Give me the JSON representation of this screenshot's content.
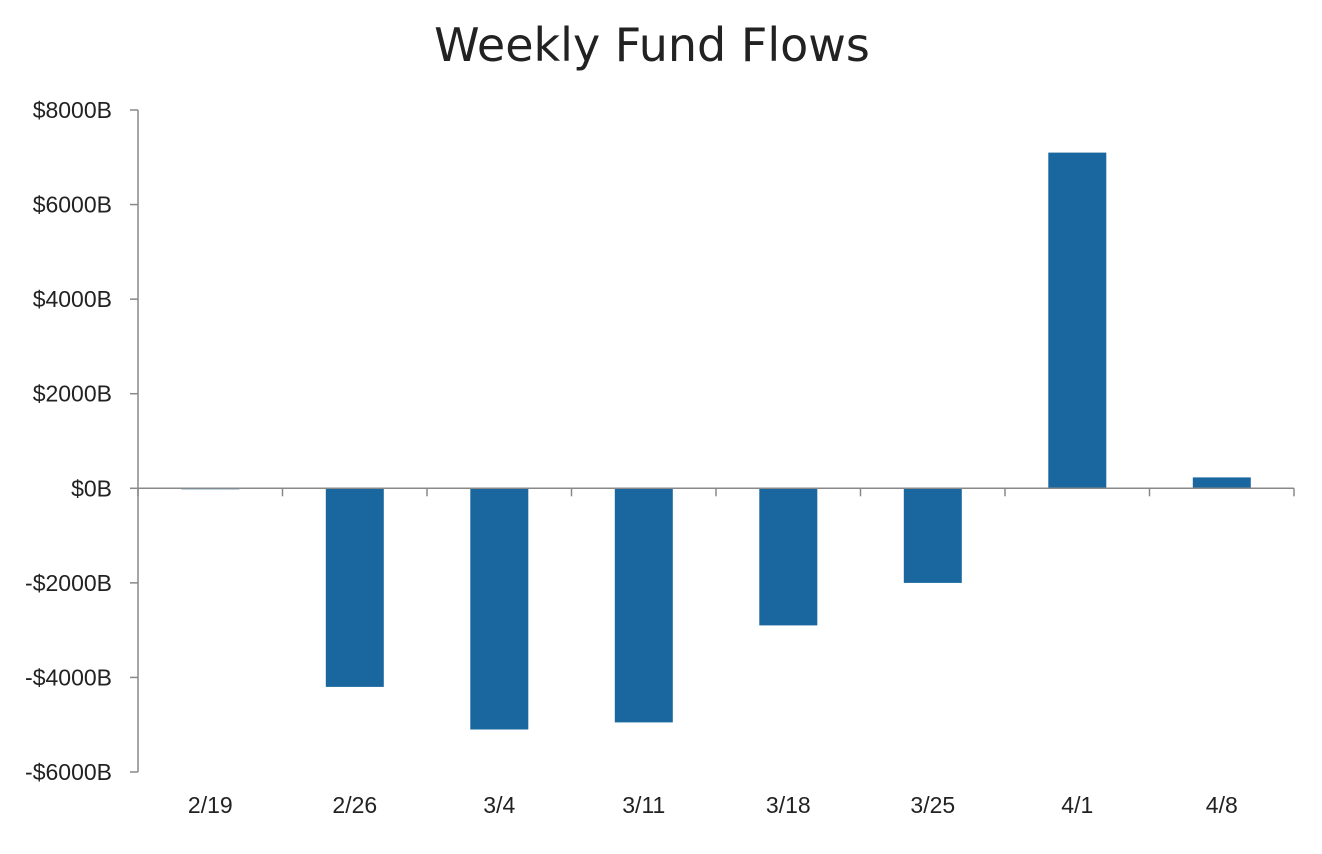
{
  "chart_data": {
    "type": "bar",
    "title": "Weekly Fund Flows",
    "xlabel": "",
    "ylabel": "",
    "categories": [
      "2/19",
      "2/26",
      "3/4",
      "3/11",
      "3/18",
      "3/25",
      "4/1",
      "4/8"
    ],
    "values": [
      -10,
      -4200,
      -5100,
      -4950,
      -2900,
      -2000,
      7100,
      230
    ],
    "ylim": [
      -6000,
      8000
    ],
    "yticks": [
      8000,
      6000,
      4000,
      2000,
      0,
      -2000,
      -4000,
      -6000
    ],
    "ytick_labels": [
      "$8000B",
      "$6000B",
      "$4000B",
      "$2000B",
      "$0B",
      "-$2000B",
      "-$4000B",
      "-$6000B"
    ],
    "grid": false,
    "legend": "none",
    "bar_color": "#1a67a0",
    "axis_color": "#888888"
  }
}
